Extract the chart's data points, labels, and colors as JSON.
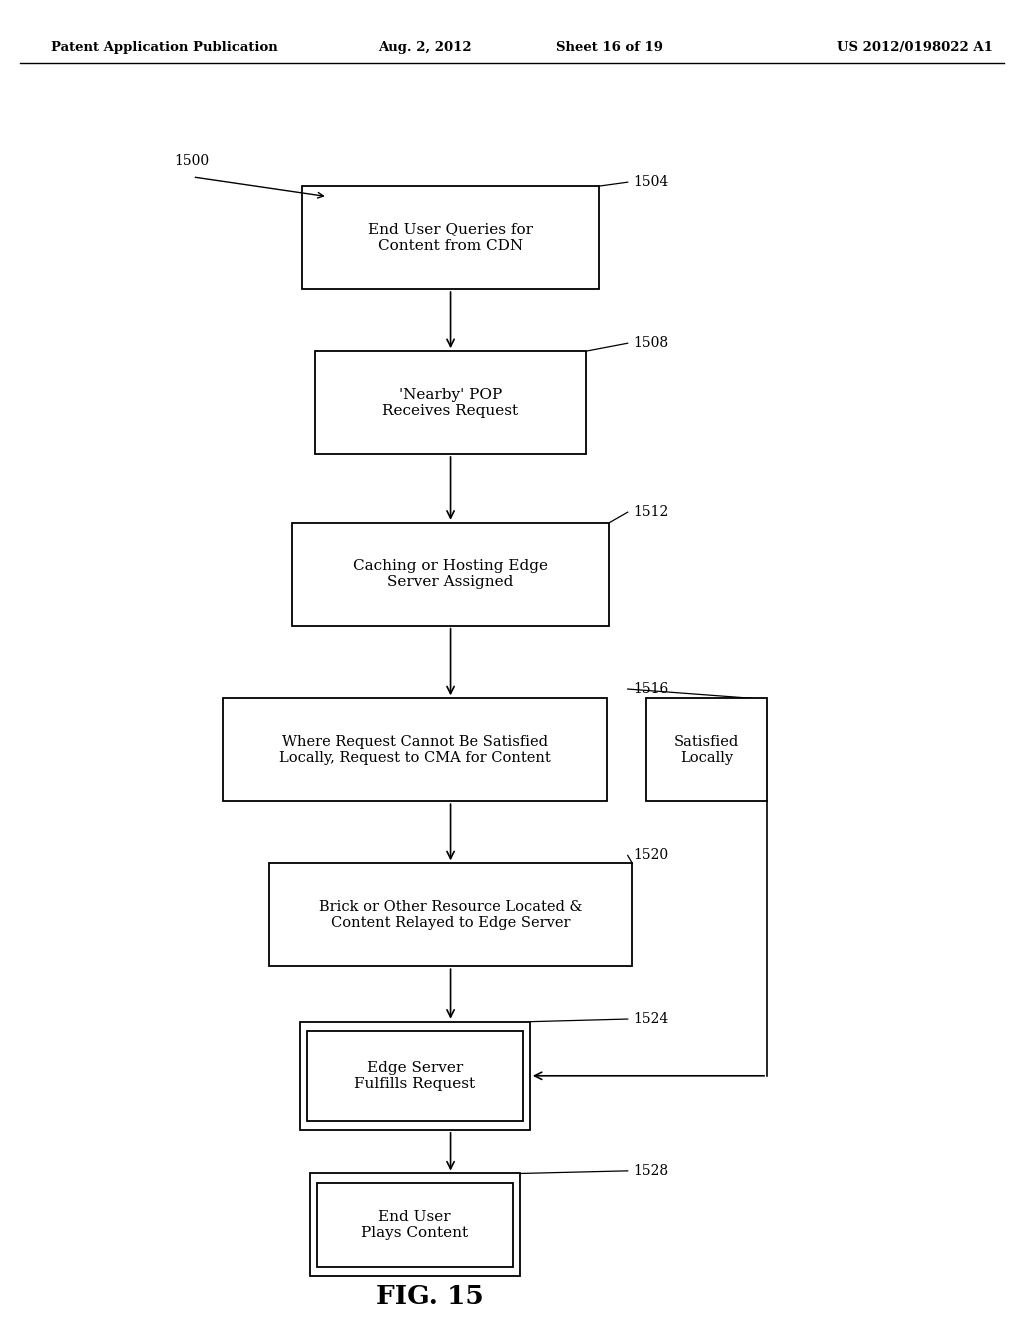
{
  "bg_color": "#ffffff",
  "header_line1": "Patent Application Publication",
  "header_line2": "Aug. 2, 2012",
  "header_line3": "Sheet 16 of 19",
  "header_line4": "US 2012/0198022 A1",
  "fig_label": "FIG. 15"
}
